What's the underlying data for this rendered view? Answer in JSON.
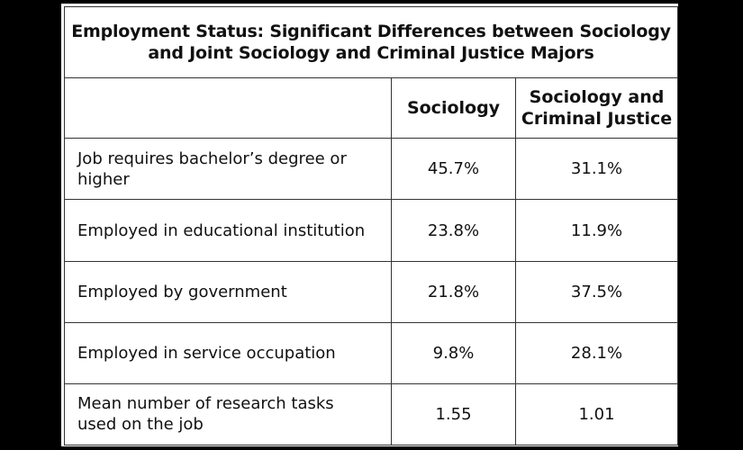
{
  "chart_data": {
    "type": "table",
    "title_lines": [
      "Employment Status:  Significant Differences between Sociology",
      "and Joint Sociology and Criminal Justice Majors"
    ],
    "columns": [
      "",
      "Sociology",
      [
        "Sociology and",
        "Criminal Justice"
      ]
    ],
    "rows": [
      {
        "label_lines": [
          "Job requires bachelor’s degree or",
          "higher"
        ],
        "values": [
          "45.7%",
          "31.1%"
        ]
      },
      {
        "label_lines": [
          "Employed in educational institution"
        ],
        "values": [
          "23.8%",
          "11.9%"
        ]
      },
      {
        "label_lines": [
          "Employed by government"
        ],
        "values": [
          "21.8%",
          "37.5%"
        ]
      },
      {
        "label_lines": [
          "Employed in service occupation"
        ],
        "values": [
          "9.8%",
          "28.1%"
        ]
      },
      {
        "label_lines": [
          "Mean number of research tasks",
          "used on the job"
        ],
        "values": [
          "1.55",
          "1.01"
        ]
      }
    ]
  }
}
